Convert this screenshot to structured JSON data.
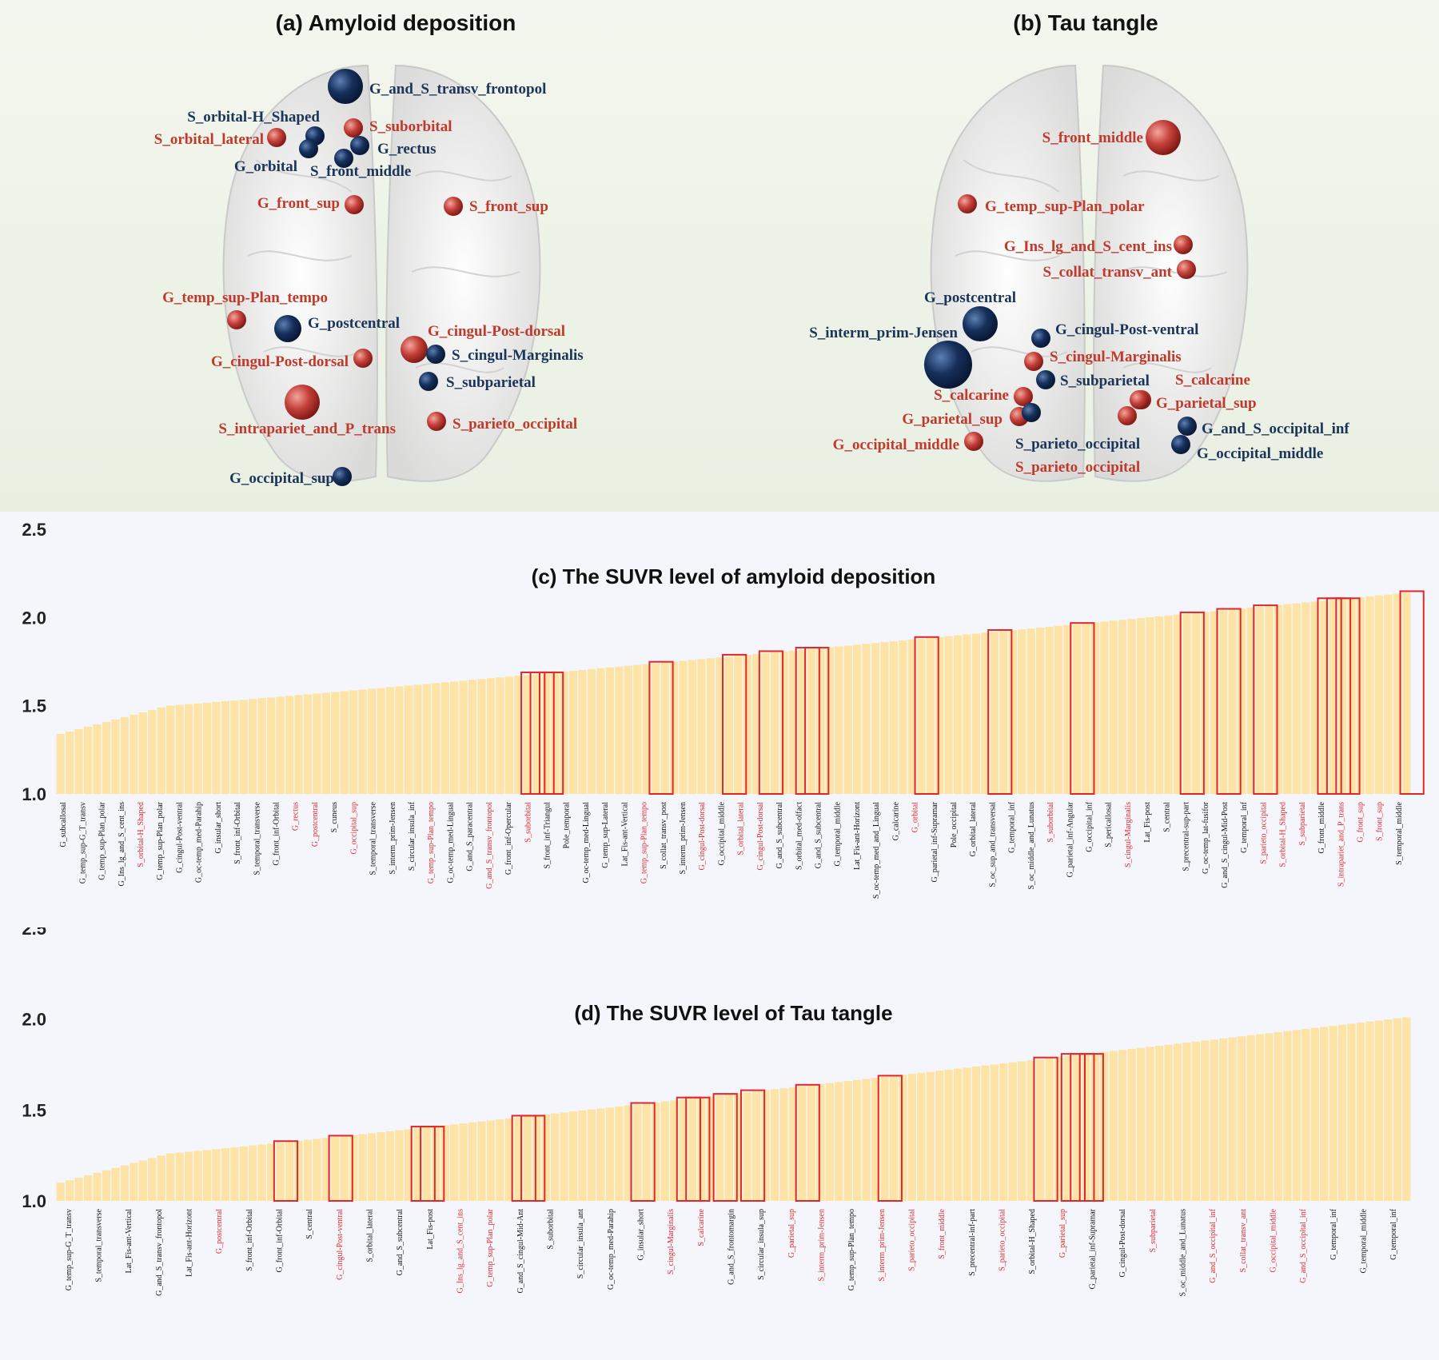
{
  "panel_a": {
    "title": "(a) Amyloid deposition",
    "nodes": [
      {
        "label": "G_and_S_transv_frontopol",
        "color": "blue",
        "size": "large"
      },
      {
        "label": "S_orbital-H_Shaped",
        "color": "blue",
        "size": "small"
      },
      {
        "label": "S_suborbital",
        "color": "red",
        "size": "small"
      },
      {
        "label": "S_orbital_lateral",
        "color": "red",
        "size": "small"
      },
      {
        "label": "G_rectus",
        "color": "blue",
        "size": "small"
      },
      {
        "label": "G_orbital",
        "color": "blue",
        "size": "small"
      },
      {
        "label": "S_front_middle",
        "color": "blue",
        "size": "small"
      },
      {
        "label": "G_front_sup",
        "color": "red",
        "size": "small"
      },
      {
        "label": "S_front_sup",
        "color": "red",
        "size": "small"
      },
      {
        "label": "G_temp_sup-Plan_tempo",
        "color": "red",
        "size": "small"
      },
      {
        "label": "G_postcentral",
        "color": "blue",
        "size": "medium"
      },
      {
        "label": "G_cingul-Post-dorsal",
        "color": "red",
        "size": "medium"
      },
      {
        "label": "G_cingul-Post-dorsal",
        "color": "red",
        "size": "small"
      },
      {
        "label": "S_cingul-Marginalis",
        "color": "blue",
        "size": "small"
      },
      {
        "label": "S_subparietal",
        "color": "blue",
        "size": "small"
      },
      {
        "label": "S_intrapariet_and_P_trans",
        "color": "red",
        "size": "large"
      },
      {
        "label": "S_parieto_occipital",
        "color": "red",
        "size": "small"
      },
      {
        "label": "G_occipital_sup",
        "color": "blue",
        "size": "small"
      }
    ]
  },
  "panel_b": {
    "title": "(b) Tau tangle",
    "nodes": [
      {
        "label": "S_front_middle",
        "color": "red",
        "size": "large"
      },
      {
        "label": "G_temp_sup-Plan_polar",
        "color": "red",
        "size": "small"
      },
      {
        "label": "G_Ins_lg_and_S_cent_ins",
        "color": "red",
        "size": "small"
      },
      {
        "label": "S_collat_transv_ant",
        "color": "red",
        "size": "small"
      },
      {
        "label": "G_postcentral",
        "color": "blue",
        "size": "large"
      },
      {
        "label": "G_cingul-Post-ventral",
        "color": "blue",
        "size": "small"
      },
      {
        "label": "S_interm_prim-Jensen",
        "color": "blue",
        "size": "xlarge"
      },
      {
        "label": "S_cingul-Marginalis",
        "color": "red",
        "size": "small"
      },
      {
        "label": "S_subparietal",
        "color": "blue",
        "size": "small"
      },
      {
        "label": "S_calcarine",
        "color": "red",
        "size": "small"
      },
      {
        "label": "S_calcarine",
        "color": "red",
        "size": "small"
      },
      {
        "label": "G_parietal_sup",
        "color": "red",
        "size": "small"
      },
      {
        "label": "G_parietal_sup",
        "color": "red",
        "size": "small"
      },
      {
        "label": "G_and_S_occipital_inf",
        "color": "blue",
        "size": "small"
      },
      {
        "label": "G_occipital_middle",
        "color": "red",
        "size": "small"
      },
      {
        "label": "S_parieto_occipital",
        "color": "blue",
        "size": "small"
      },
      {
        "label": "G_occipital_middle",
        "color": "blue",
        "size": "small"
      },
      {
        "label": "S_parieto_occipital",
        "color": "red",
        "size": "small"
      }
    ]
  },
  "colors": {
    "bar": "#fde4a6",
    "highlight": "#e0282b",
    "node_red": "#c4413a",
    "node_blue": "#16305c",
    "label_red": "#c0392b",
    "label_blue": "#1b3558"
  },
  "chart_data": [
    {
      "type": "bar",
      "title": "(c) The SUVR level of amyloid deposition",
      "ylim": [
        1.0,
        2.5
      ],
      "yticks": [
        "1.0",
        "1.5",
        "2.0",
        "2.5"
      ],
      "n_bars": 148,
      "values_trend": {
        "start": 1.34,
        "end": 2.14,
        "shape": "monotonic increasing"
      },
      "highlighted_regions": [
        {
          "label": "G_rectus",
          "value": 1.68
        },
        {
          "label": "G_postcentral",
          "value": 1.68
        },
        {
          "label": "G_occipital_sup",
          "value": 1.68
        },
        {
          "label": "G_and_S_transv_frontopol",
          "value": 1.74
        },
        {
          "label": "G_temp_sup-Plan_tempo",
          "value": 1.78
        },
        {
          "label": "G_cingul-Post-dorsal",
          "value": 1.8
        },
        {
          "label": "S_orbital_lateral",
          "value": 1.82
        },
        {
          "label": "G_cingul-Post-dorsal",
          "value": 1.82
        },
        {
          "label": "G_orbital",
          "value": 1.88
        },
        {
          "label": "S_suborbital",
          "value": 1.92
        },
        {
          "label": "S_cingul-Marginalis",
          "value": 1.96
        },
        {
          "label": "S_parieto_occipital",
          "value": 2.02
        },
        {
          "label": "S_orbital-H_Shaped",
          "value": 2.04
        },
        {
          "label": "S_subparietal",
          "value": 2.06
        },
        {
          "label": "S_front_middle",
          "value": 2.1
        },
        {
          "label": "G_front_sup",
          "value": 2.1
        },
        {
          "label": "S_intrapariet_and_P_trans",
          "value": 2.1
        },
        {
          "label": "S_front_sup",
          "value": 2.14
        }
      ],
      "xticklabels": [
        "G_subcallosal",
        "G_temp_sup-G_T_transv",
        "G_temp_sup-Plan_polar",
        "G_Ins_lg_and_S_cent_ins",
        "S_orbital-H_Shaped",
        "G_temp_sup-Plan_polar",
        "G_cingul-Post-ventral",
        "G_oc-temp_med-Parahip",
        "G_insular_short",
        "S_front_inf-Orbital",
        "S_temporal_transverse",
        "G_front_inf-Orbital",
        "G_rectus",
        "G_postcentral",
        "S_cuneus",
        "G_occipital_sup",
        "S_temporal_transverse",
        "S_interm_prim-Jensen",
        "S_circular_insula_inf",
        "G_temp_sup-Plan_tempo",
        "G_oc-temp_med-Lingual",
        "G_and_S_paracentral",
        "G_and_S_transv_frontopol",
        "G_front_inf-Opercular",
        "S_suborbital",
        "S_front_inf-Triangul",
        "Pole_temporal",
        "G_oc-temp_med-Lingual",
        "G_temp_sup-Lateral",
        "Lat_Fis-ant-Vertical",
        "G_temp_sup-Plan_tempo",
        "S_collat_transv_post",
        "S_interm_prim-Jensen",
        "G_cingul-Post-dorsal",
        "G_occipital_middle",
        "S_orbital_lateral",
        "G_cingul-Post-dorsal",
        "G_and_S_subcentral",
        "S_orbital_med-olfact",
        "G_and_S_subcentral",
        "G_temporal_middle",
        "Lat_Fis-ant-Horizont",
        "S_oc-temp_med_and_Lingual",
        "G_calcarine",
        "G_orbital",
        "G_parietal_inf-Supramar",
        "Pole_occipital",
        "G_orbital_lateral",
        "S_oc_sup_and_transversal",
        "G_temporal_inf",
        "S_oc_middle_and_Lunatus",
        "S_suborbital",
        "G_parietal_inf-Angular",
        "G_occipital_inf",
        "S_pericallosal",
        "S_cingul-Marginalis",
        "Lat_Fis-post",
        "S_central",
        "S_precentral-sup-part",
        "G_oc-temp_lat-fusifor",
        "G_and_S_cingul-Mid-Post",
        "G_temporal_inf",
        "S_parieto_occipital",
        "S_orbital-H_Shaped",
        "S_subparietal",
        "G_front_middle",
        "S_intrapariet_and_P_trans",
        "G_front_sup",
        "S_front_sup",
        "S_temporal_middle"
      ]
    },
    {
      "type": "bar",
      "title": "(d) The SUVR level of Tau tangle",
      "ylim": [
        1.0,
        2.5
      ],
      "yticks": [
        "1.0",
        "1.5",
        "2.0",
        "2.5"
      ],
      "n_bars": 148,
      "values_trend": {
        "start": 1.1,
        "end": 2.01,
        "shape": "monotonic increasing"
      },
      "highlighted_regions": [
        {
          "label": "G_postcentral",
          "value": 1.32
        },
        {
          "label": "G_cingul-Post-ventral",
          "value": 1.35
        },
        {
          "label": "G_Ins_lg_and_S_cent_ins",
          "value": 1.4
        },
        {
          "label": "G_temp_sup-Plan_polar",
          "value": 1.4
        },
        {
          "label": "S_cingul-Marginalis",
          "value": 1.46
        },
        {
          "label": "S_calcarine",
          "value": 1.46
        },
        {
          "label": "G_parietal_sup",
          "value": 1.53
        },
        {
          "label": "S_interm_prim-Jensen",
          "value": 1.56
        },
        {
          "label": "S_parieto_occipital",
          "value": 1.56
        },
        {
          "label": "S_front_middle",
          "value": 1.58
        },
        {
          "label": "S_parieto_occipital",
          "value": 1.6
        },
        {
          "label": "G_parietal_sup",
          "value": 1.63
        },
        {
          "label": "S_subparietal",
          "value": 1.68
        },
        {
          "label": "G_and_S_occipital_inf",
          "value": 1.78
        },
        {
          "label": "S_collat_transv_ant",
          "value": 1.8
        },
        {
          "label": "G_occipital_middle",
          "value": 1.8
        },
        {
          "label": "S_calcarine",
          "value": 1.8
        }
      ],
      "xticklabels": [
        "G_temp_sup-G_T_transv",
        "S_temporal_transverse",
        "Lat_Fis-ant-Vertical",
        "G_and_S_transv_frontopol",
        "Lat_Fis-ant-Horizont",
        "G_postcentral",
        "S_front_inf-Orbital",
        "G_front_inf-Orbital",
        "S_central",
        "G_cingul-Post-ventral",
        "S_orbital_lateral",
        "G_and_S_subcentral",
        "Lat_Fis-post",
        "G_Ins_lg_and_S_cent_ins",
        "G_temp_sup-Plan_polar",
        "G_and_S_cingul-Mid-Ant",
        "S_suborbital",
        "S_circular_insula_ant",
        "G_oc-temp_med-Parahip",
        "G_insular_short",
        "S_cingul-Marginalis",
        "S_calcarine",
        "G_and_S_frontomargin",
        "S_circular_insula_sup",
        "G_parietal_sup",
        "S_interm_prim-Jensen",
        "G_temp_sup-Plan_tempo",
        "S_interm_prim-Jensen",
        "S_parieto_occipital",
        "S_front_middle",
        "S_precentral-inf-part",
        "S_parieto_occipital",
        "S_orbital-H_Shaped",
        "G_parietal_sup",
        "G_parietal_inf-Supramar",
        "G_cingul-Post-dorsal",
        "S_subparietal",
        "S_oc_middle_and_Lunatus",
        "G_and_S_occipital_inf",
        "S_collat_transv_ant",
        "G_occipital_middle",
        "G_and_S_occipital_inf",
        "G_temporal_inf",
        "G_temporal_middle",
        "G_temporal_inf"
      ]
    }
  ]
}
